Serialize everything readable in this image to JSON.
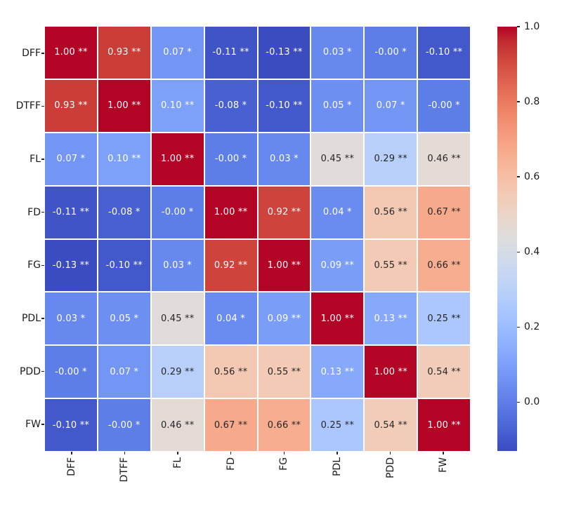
{
  "figure": {
    "background": "#ffffff"
  },
  "chart_data": {
    "type": "heatmap",
    "title": "",
    "categories": [
      "DFF",
      "DTFF",
      "FL",
      "FD",
      "FG",
      "PDL",
      "PDD",
      "FW"
    ],
    "values": [
      [
        1.0,
        0.93,
        0.07,
        -0.11,
        -0.13,
        0.03,
        -0.0,
        -0.1
      ],
      [
        0.93,
        1.0,
        0.1,
        -0.08,
        -0.1,
        0.05,
        0.07,
        -0.0
      ],
      [
        0.07,
        0.1,
        1.0,
        -0.0,
        0.03,
        0.45,
        0.29,
        0.46
      ],
      [
        -0.11,
        -0.08,
        -0.0,
        1.0,
        0.92,
        0.04,
        0.56,
        0.67
      ],
      [
        -0.13,
        -0.1,
        0.03,
        0.92,
        1.0,
        0.09,
        0.55,
        0.66
      ],
      [
        0.03,
        0.05,
        0.45,
        0.04,
        0.09,
        1.0,
        0.13,
        0.25
      ],
      [
        -0.0,
        0.07,
        0.29,
        0.56,
        0.55,
        0.13,
        1.0,
        0.54
      ],
      [
        -0.1,
        -0.0,
        0.46,
        0.67,
        0.66,
        0.25,
        0.54,
        1.0
      ]
    ],
    "annotations": [
      [
        "1.00 **",
        "0.93 **",
        "0.07 *",
        "-0.11 **",
        "-0.13 **",
        "0.03 *",
        "-0.00 *",
        "-0.10 **"
      ],
      [
        "0.93 **",
        "1.00 **",
        "0.10 **",
        "-0.08 *",
        "-0.10 **",
        "0.05 *",
        "0.07 *",
        "-0.00 *"
      ],
      [
        "0.07 *",
        "0.10 **",
        "1.00 **",
        "-0.00 *",
        "0.03 *",
        "0.45 **",
        "0.29 **",
        "0.46 **"
      ],
      [
        "-0.11 **",
        "-0.08 *",
        "-0.00 *",
        "1.00 **",
        "0.92 **",
        "0.04 *",
        "0.56 **",
        "0.67 **"
      ],
      [
        "-0.13 **",
        "-0.10 **",
        "0.03 *",
        "0.92 **",
        "1.00 **",
        "0.09 **",
        "0.55 **",
        "0.66 **"
      ],
      [
        "0.03 *",
        "0.05 *",
        "0.45 **",
        "0.04 *",
        "0.09 **",
        "1.00 **",
        "0.13 **",
        "0.25 **"
      ],
      [
        "-0.00 *",
        "0.07 *",
        "0.29 **",
        "0.56 **",
        "0.55 **",
        "0.13 **",
        "1.00 **",
        "0.54 **"
      ],
      [
        "-0.10 **",
        "-0.00 *",
        "0.46 **",
        "0.67 **",
        "0.66 **",
        "0.25 **",
        "0.54 **",
        "1.00 **"
      ]
    ],
    "colormap": "coolwarm",
    "vmin": -0.13,
    "vmax": 1.0,
    "grid_line_color": "#ffffff",
    "annotation_colors": {
      "on_light": "#262626",
      "on_dark": "#ffffff"
    },
    "colorbar": {
      "position": "right",
      "tick_labels": [
        "1.0",
        "0.8",
        "0.6",
        "0.4",
        "0.2",
        "0.0"
      ],
      "tick_values": [
        1.0,
        0.8,
        0.6,
        0.4,
        0.2,
        0.0
      ]
    },
    "xlabel": "",
    "ylabel": "",
    "legend": "none"
  }
}
